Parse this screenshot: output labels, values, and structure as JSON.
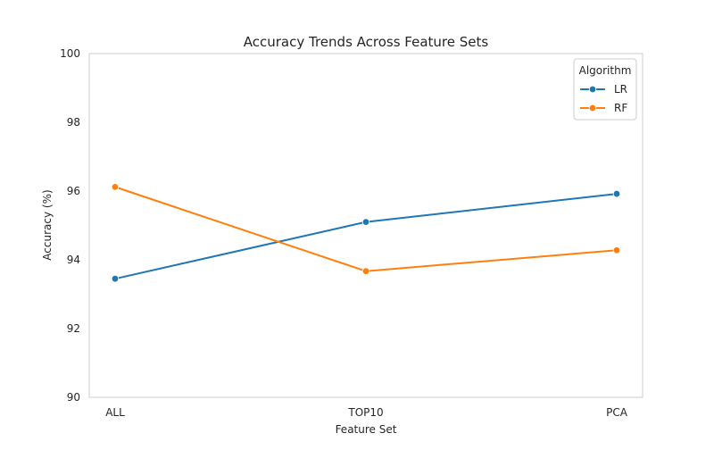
{
  "chart_data": {
    "type": "line",
    "title": "Accuracy Trends Across Feature Sets",
    "xlabel": "Feature Set",
    "ylabel": "Accuracy (%)",
    "categories": [
      "ALL",
      "TOP10",
      "PCA"
    ],
    "ylim": [
      90,
      100
    ],
    "yticks": [
      "90",
      "92",
      "94",
      "96",
      "98",
      "100"
    ],
    "grid": false,
    "legend": {
      "title": "Algorithm",
      "placement": "top-right"
    },
    "series": [
      {
        "name": "LR",
        "color": "#1f77b4",
        "values": [
          93.45,
          95.1,
          95.92
        ]
      },
      {
        "name": "RF",
        "color": "#ff7f0e",
        "values": [
          96.12,
          93.67,
          94.28
        ]
      }
    ]
  }
}
